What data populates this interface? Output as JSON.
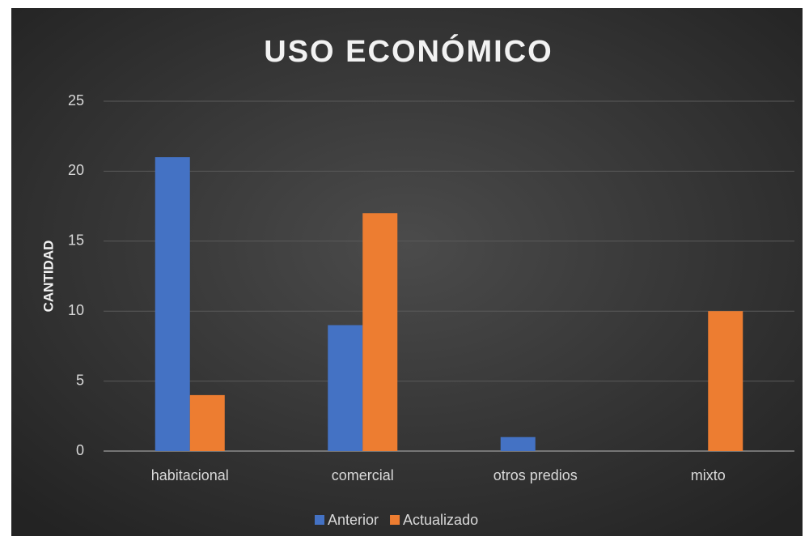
{
  "chart_data": {
    "type": "bar",
    "title": "USO ECONÓMICO",
    "y_label": "CANTIDAD",
    "categories": [
      "habitacional",
      "comercial",
      "otros predios",
      "mixto"
    ],
    "series": [
      {
        "name": "Anterior",
        "color": "#4472c4",
        "values": [
          21,
          9,
          1,
          0
        ]
      },
      {
        "name": "Actualizado",
        "color": "#ed7d31",
        "values": [
          4,
          17,
          0,
          10
        ]
      }
    ],
    "ylim": [
      0,
      25
    ],
    "yticks": [
      0,
      5,
      10,
      15,
      20,
      25
    ],
    "grid": true,
    "legend": "bottom"
  }
}
